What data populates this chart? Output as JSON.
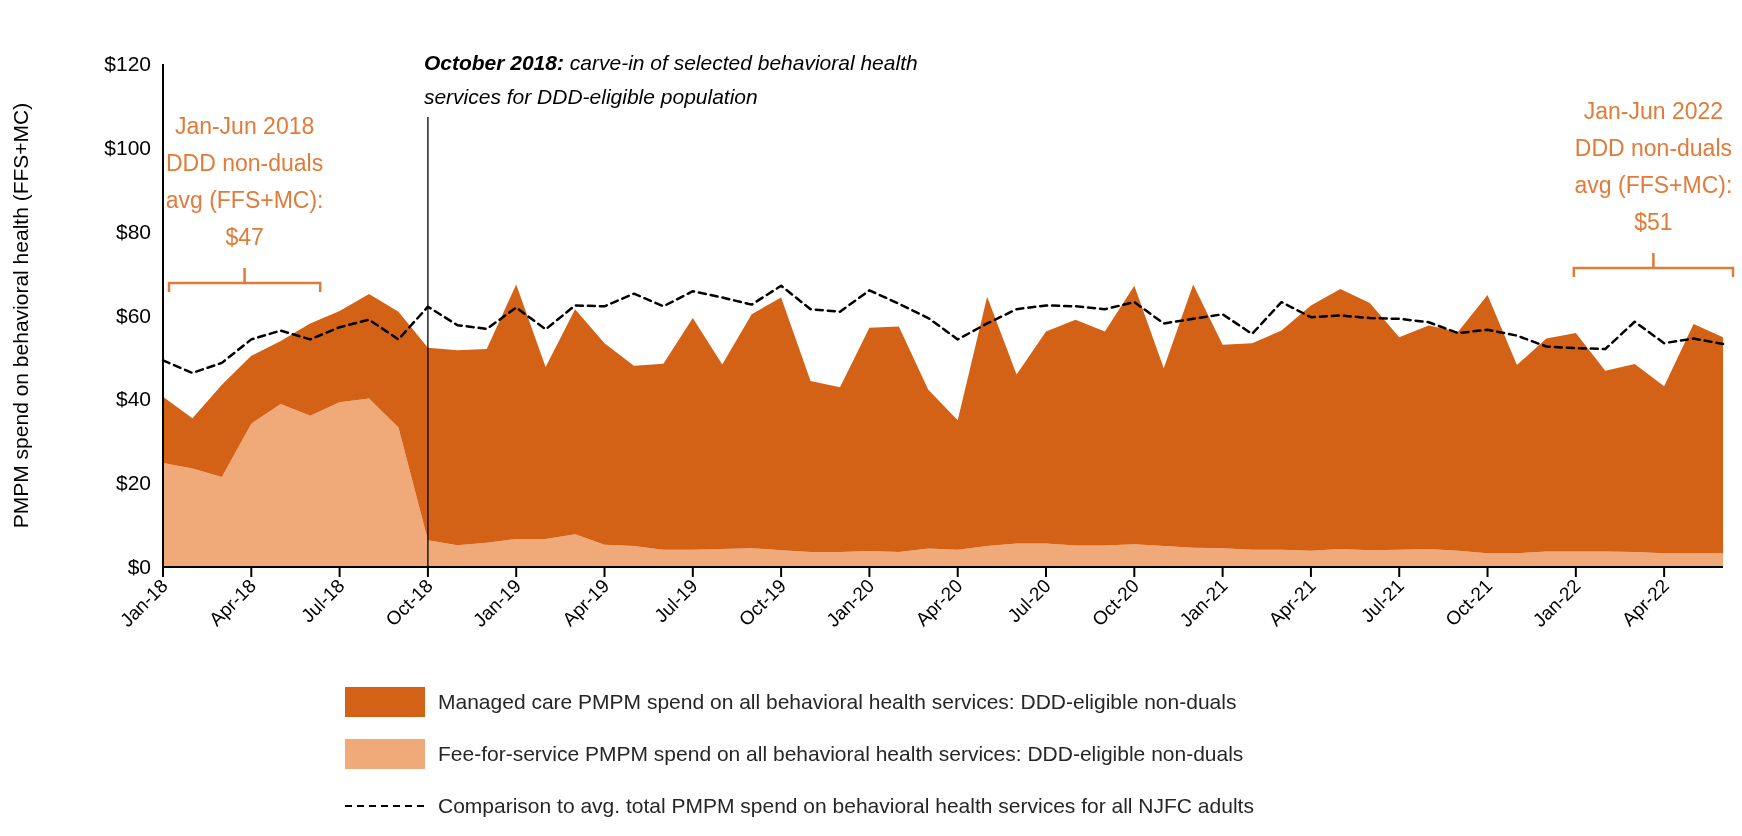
{
  "chart_data": {
    "type": "area",
    "stacked": true,
    "ylabel": "PMPM spend on behavioral health (FFS+MC)",
    "categories": [
      "Jan-18",
      null,
      null,
      "Apr-18",
      null,
      null,
      "Jul-18",
      null,
      null,
      "Oct-18",
      null,
      null,
      "Jan-19",
      null,
      null,
      "Apr-19",
      null,
      null,
      "Jul-19",
      null,
      null,
      "Oct-19",
      null,
      null,
      "Jan-20",
      null,
      null,
      "Apr-20",
      null,
      null,
      "Jul-20",
      null,
      null,
      "Oct-20",
      null,
      null,
      "Jan-21",
      null,
      null,
      "Apr-21",
      null,
      null,
      "Jul-21",
      null,
      null,
      "Oct-21",
      null,
      null,
      "Jan-22",
      null,
      null,
      "Apr-22",
      null,
      null
    ],
    "series": [
      {
        "name": "Fee-for-service PMPM spend on all behavioral health services: DDD-eligible non-duals",
        "type": "area",
        "color": "#f0aa7a",
        "values": [
          24.8,
          23.5,
          21.5,
          34.2,
          38.9,
          36.1,
          39.3,
          40.2,
          33.3,
          6.4,
          5.2,
          5.8,
          6.7,
          6.7,
          7.8,
          5.3,
          5.0,
          4.1,
          4.1,
          4.3,
          4.5,
          4.0,
          3.6,
          3.6,
          3.8,
          3.6,
          4.4,
          4.1,
          5.0,
          5.6,
          5.6,
          5.1,
          5.1,
          5.4,
          5.0,
          4.6,
          4.5,
          4.1,
          4.1,
          3.9,
          4.3,
          4.0,
          4.1,
          4.3,
          3.9,
          3.3,
          3.3,
          3.7,
          3.7,
          3.7,
          3.6,
          3.3,
          3.3,
          3.3
        ]
      },
      {
        "name": "Managed care PMPM spend on all behavioral health services: DDD-eligible non-duals",
        "type": "area",
        "color": "#d46216",
        "values": [
          15.8,
          12.0,
          22.0,
          16.2,
          15.0,
          22.0,
          21.8,
          24.9,
          27.6,
          45.9,
          46.5,
          46.2,
          60.7,
          41.0,
          53.7,
          48.1,
          43.0,
          44.4,
          55.3,
          44.0,
          55.8,
          60.3,
          40.8,
          39.3,
          53.3,
          53.8,
          37.9,
          30.9,
          59.5,
          40.3,
          50.6,
          53.9,
          51.1,
          61.7,
          42.4,
          62.8,
          48.5,
          49.3,
          52.3,
          58.5,
          62.0,
          59.0,
          50.7,
          53.3,
          52.2,
          61.6,
          44.9,
          50.8,
          52.1,
          43.1,
          44.8,
          39.8,
          54.7,
          51.5
        ]
      },
      {
        "name": "Comparison to avg. total PMPM spend on behavioral health services for all NJFC adults",
        "type": "line",
        "line_style": "dashed",
        "color": "#000000",
        "values": [
          49.3,
          46.3,
          48.7,
          54.3,
          56.4,
          54.3,
          57.2,
          59.0,
          54.3,
          62.1,
          57.7,
          56.8,
          61.9,
          56.7,
          62.4,
          62.2,
          65.2,
          62.2,
          65.8,
          64.3,
          62.6,
          67.1,
          61.5,
          60.9,
          66.0,
          62.8,
          59.4,
          54.3,
          58.1,
          61.5,
          62.4,
          62.2,
          61.5,
          63.2,
          58.1,
          59.2,
          60.3,
          55.6,
          63.2,
          59.6,
          60.0,
          59.4,
          59.2,
          58.4,
          55.8,
          56.6,
          55.2,
          52.6,
          52.2,
          52.0,
          58.5,
          53.4,
          54.5,
          53.2
        ]
      }
    ],
    "ylim": [
      0,
      120
    ],
    "yticks": [
      {
        "value": 0,
        "label": "$0"
      },
      {
        "value": 20,
        "label": "$20"
      },
      {
        "value": 40,
        "label": "$40"
      },
      {
        "value": 60,
        "label": "$60"
      },
      {
        "value": 80,
        "label": "$80"
      },
      {
        "value": 100,
        "label": "$100"
      },
      {
        "value": 120,
        "label": "$120"
      }
    ],
    "ref_lines": [
      {
        "axis": "x",
        "value": "Oct-18",
        "label": "October 2018: carve-in of selected behavioral health services for DDD-eligible population"
      }
    ],
    "annotations": [
      "Jan-Jun 2018 DDD non-duals avg (FFS+MC): $47",
      "Jan-Jun 2022 DDD non-duals avg (FFS+MC): $51"
    ],
    "legend": "bottom"
  }
}
